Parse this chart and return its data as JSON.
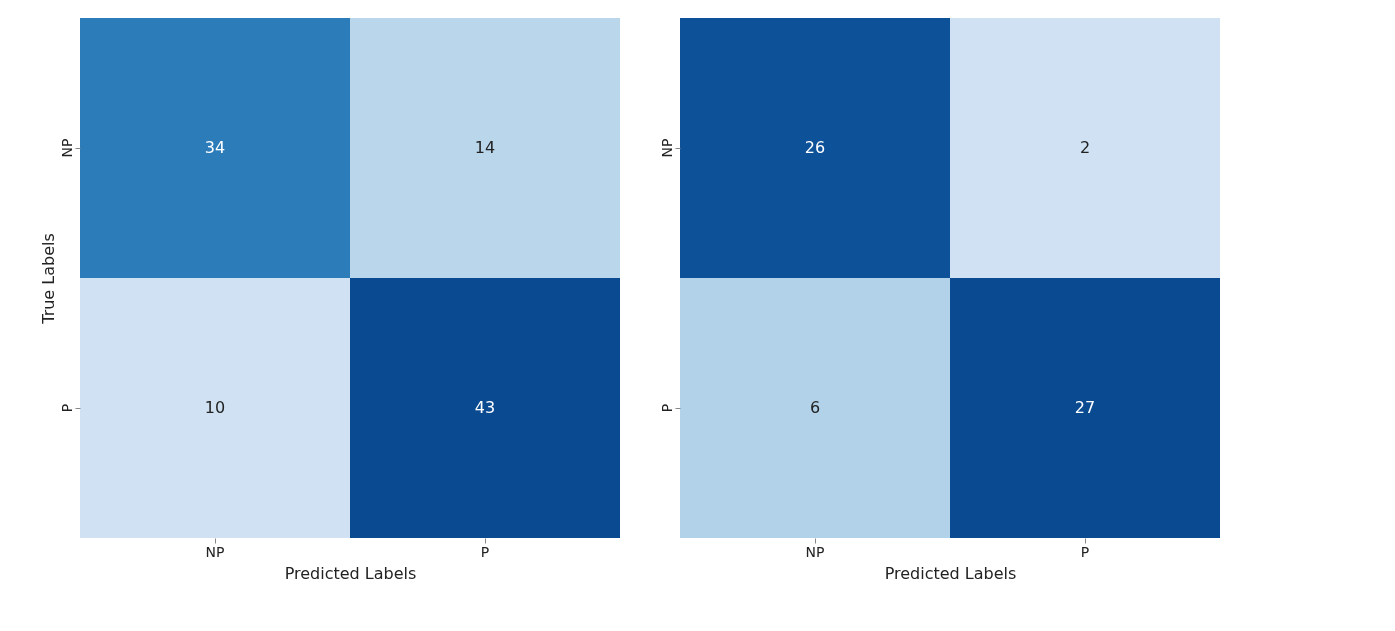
{
  "chart_data": [
    {
      "type": "heatmap",
      "categories": [
        "NP",
        "P"
      ],
      "y_categories": [
        "NP",
        "P"
      ],
      "cells": [
        [
          34,
          14
        ],
        [
          10,
          43
        ]
      ],
      "xlabel": "Predicted Labels",
      "ylabel": "True Labels",
      "data_labels": true
    },
    {
      "type": "heatmap",
      "categories": [
        "NP",
        "P"
      ],
      "y_categories": [
        "NP",
        "P"
      ],
      "cells": [
        [
          26,
          2
        ],
        [
          6,
          27
        ]
      ],
      "xlabel": "Predicted Labels",
      "data_labels": true
    }
  ]
}
